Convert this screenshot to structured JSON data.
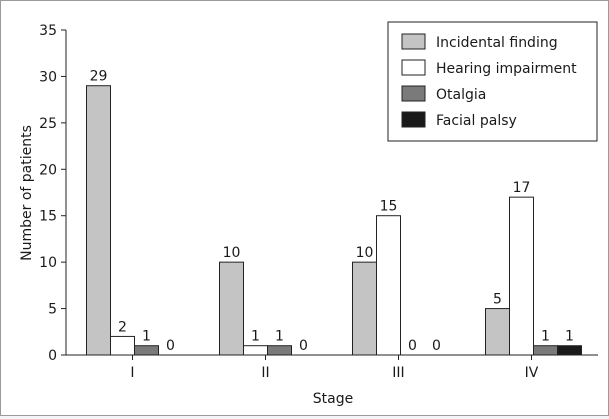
{
  "chart_data": {
    "type": "bar",
    "title": "",
    "xlabel": "Stage",
    "ylabel": "Number of patients",
    "ylim": [
      0,
      35
    ],
    "yticks": [
      "0",
      "5",
      "10",
      "15",
      "20",
      "25",
      "30",
      "35"
    ],
    "categories": [
      "I",
      "II",
      "III",
      "IV"
    ],
    "series": [
      {
        "name": "Incidental finding",
        "values": [
          29,
          10,
          10,
          5
        ],
        "color": "#c4c4c4"
      },
      {
        "name": "Hearing impairment",
        "values": [
          2,
          1,
          15,
          17
        ],
        "color": "#ffffff"
      },
      {
        "name": "Otalgia",
        "values": [
          1,
          1,
          0,
          1
        ],
        "color": "#7a7a7a"
      },
      {
        "name": "Facial palsy",
        "values": [
          0,
          0,
          0,
          1
        ],
        "color": "#1a1a1a"
      }
    ],
    "legend_position": "top-right",
    "grid": false
  }
}
